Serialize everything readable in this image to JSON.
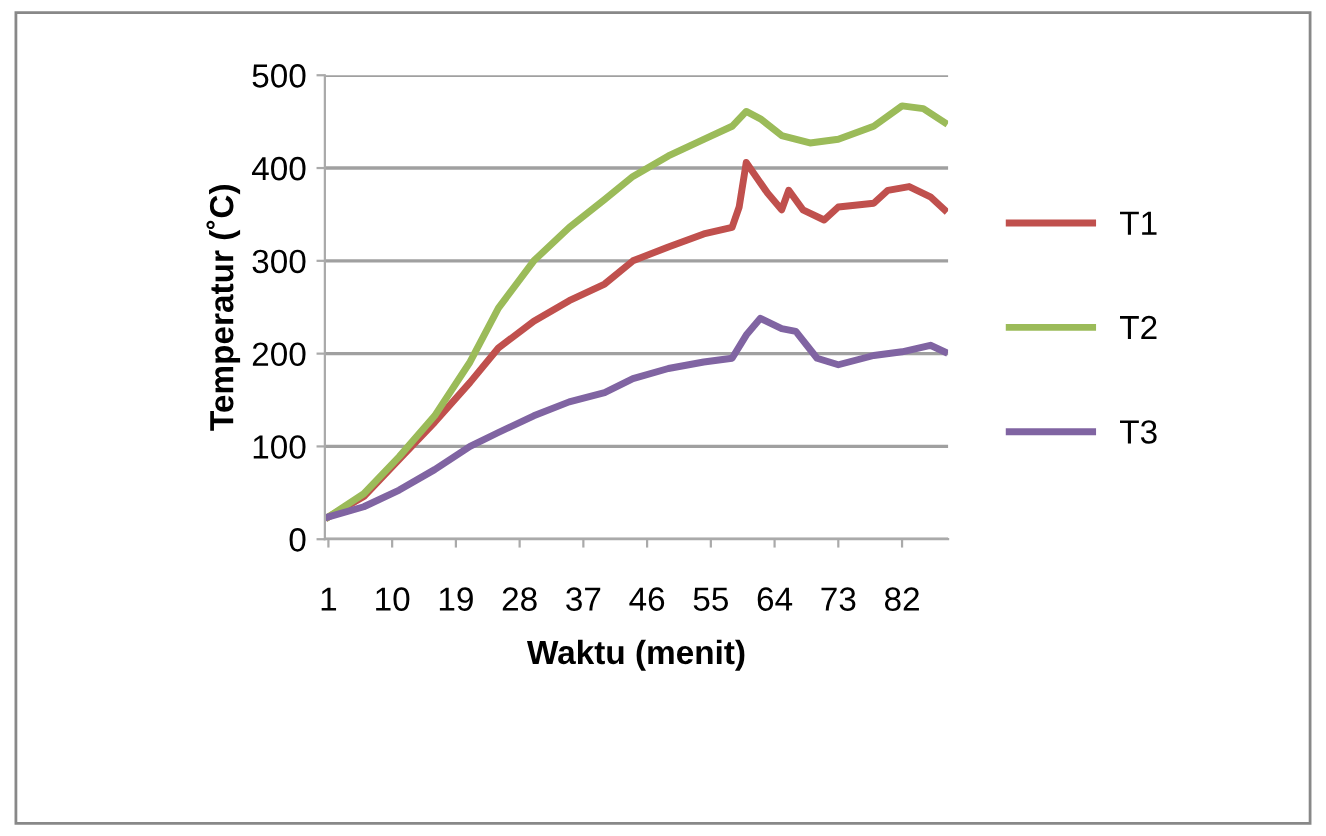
{
  "chart_data": {
    "type": "line",
    "xlabel": "Waktu (menit)",
    "ylabel": "Temperatur (˚C)",
    "xlim": [
      0.5,
      88.5
    ],
    "xticks": [
      1,
      10,
      19,
      28,
      37,
      46,
      55,
      64,
      73,
      82
    ],
    "ylim": [
      0,
      500
    ],
    "yticks": [
      0,
      100,
      200,
      300,
      400,
      500
    ],
    "grid": "y",
    "legend": "right",
    "marker": "none",
    "line_style": "solid",
    "series": [
      {
        "name": "T1",
        "color": "#c0504d",
        "x": [
          1,
          6,
          11,
          16,
          21,
          25,
          30,
          35,
          40,
          44,
          49,
          54,
          58,
          59,
          60,
          61,
          63,
          65,
          66,
          68,
          71,
          73,
          78,
          80,
          83,
          86,
          88
        ],
        "values": [
          24,
          46,
          86,
          126,
          169,
          206,
          235,
          257,
          275,
          300,
          315,
          329,
          336,
          358,
          406,
          395,
          373,
          355,
          376,
          355,
          344,
          358,
          362,
          376,
          380,
          369,
          355
        ]
      },
      {
        "name": "T2",
        "color": "#9bbb59",
        "x": [
          1,
          6,
          11,
          16,
          21,
          25,
          30,
          35,
          40,
          44,
          49,
          54,
          58,
          60,
          62,
          65,
          69,
          73,
          78,
          82,
          85,
          88
        ],
        "values": [
          24,
          49,
          89,
          133,
          191,
          249,
          300,
          336,
          366,
          391,
          413,
          431,
          445,
          461,
          453,
          435,
          427,
          431,
          445,
          467,
          464,
          449
        ]
      },
      {
        "name": "T3",
        "color": "#8064a2",
        "x": [
          1,
          6,
          11,
          16,
          21,
          25,
          30,
          35,
          40,
          44,
          49,
          54,
          58,
          60,
          62,
          65,
          67,
          70,
          73,
          78,
          82,
          86,
          88
        ],
        "values": [
          24,
          35,
          53,
          75,
          100,
          115,
          133,
          148,
          158,
          173,
          184,
          191,
          195,
          220,
          238,
          227,
          224,
          195,
          188,
          198,
          202,
          209,
          202
        ]
      }
    ]
  }
}
